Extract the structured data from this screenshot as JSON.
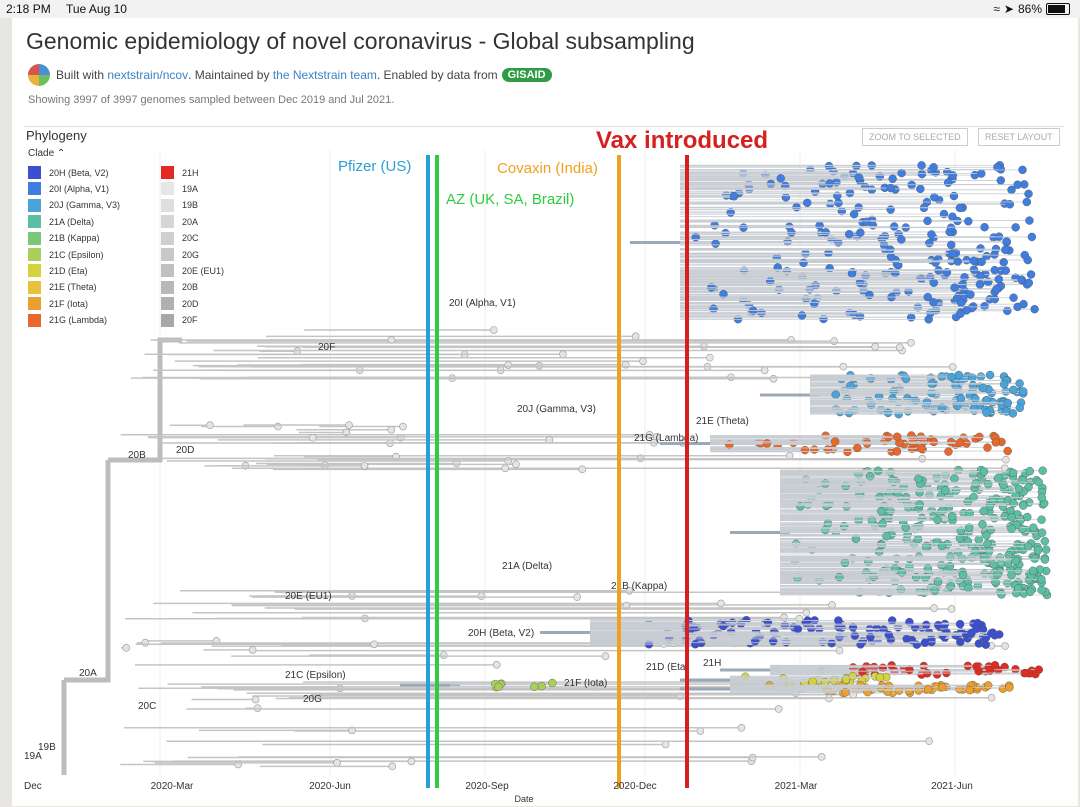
{
  "status_bar": {
    "time": "2:18 PM",
    "date": "Tue Aug 10",
    "battery": "86%",
    "battery_level": 0.86
  },
  "header": {
    "title": "Genomic epidemiology of novel coronavirus - Global subsampling",
    "built_with": "Built with",
    "built_link": "nextstrain/ncov",
    "maintained_by": ". Maintained by",
    "team_link": "the Nextstrain team",
    "enabled_by": ". Enabled by data from",
    "gisaid": "GISAID",
    "showing": "Showing 3997 of 3997 genomes sampled between Dec 2019 and Jul 2021."
  },
  "panel": {
    "title": "Phylogeny",
    "clade_label": "Clade",
    "zoom_button": "ZOOM TO SELECTED",
    "reset_button": "RESET LAYOUT",
    "x_axis_title": "Date",
    "x_ticks": [
      "Dec",
      "2020-Mar",
      "2020-Jun",
      "2020-Sep",
      "2020-Dec",
      "2021-Mar",
      "2021-Jun"
    ]
  },
  "legend": [
    {
      "label": "20H (Beta, V2)",
      "color": "#3d4fd1"
    },
    {
      "label": "20I (Alpha, V1)",
      "color": "#3f7de0"
    },
    {
      "label": "20J (Gamma, V3)",
      "color": "#4aa3d9"
    },
    {
      "label": "21A (Delta)",
      "color": "#5cbfa3"
    },
    {
      "label": "21B (Kappa)",
      "color": "#7bc77a"
    },
    {
      "label": "21C (Epsilon)",
      "color": "#a9cf5a"
    },
    {
      "label": "21D (Eta)",
      "color": "#d6d23c"
    },
    {
      "label": "21E (Theta)",
      "color": "#e8c23a"
    },
    {
      "label": "21F (Iota)",
      "color": "#eaa030"
    },
    {
      "label": "21G (Lambda)",
      "color": "#e8682c"
    },
    {
      "label": "21H",
      "color": "#e02a22"
    },
    {
      "label": "19A",
      "color": "#e6e6e6"
    },
    {
      "label": "19B",
      "color": "#dedede"
    },
    {
      "label": "20A",
      "color": "#d6d6d6"
    },
    {
      "label": "20C",
      "color": "#cfcfcf"
    },
    {
      "label": "20G",
      "color": "#c8c8c8"
    },
    {
      "label": "20E (EU1)",
      "color": "#c0c0c0"
    },
    {
      "label": "20B",
      "color": "#b8b8b8"
    },
    {
      "label": "20D",
      "color": "#b0b0b0"
    },
    {
      "label": "20F",
      "color": "#a8a8a8"
    }
  ],
  "tree_labels": [
    "20I (Alpha, V1)",
    "20F",
    "20J (Gamma, V3)",
    "21E (Theta)",
    "21G (Lambda)",
    "20B",
    "20D",
    "21A (Delta)",
    "21B (Kappa)",
    "20E (EU1)",
    "20H (Beta, V2)",
    "21H",
    "21D (Eta)",
    "20A",
    "21C (Epsilon)",
    "21F (Iota)",
    "20C",
    "20G",
    "19B",
    "19A"
  ],
  "annotations": {
    "pfizer": "Pfizer (US)",
    "az": "AZ (UK, SA, Brazil)",
    "covaxin": "Covaxin (India)",
    "vax": "Vax introduced",
    "colors": {
      "pfizer": "#2a9fd6",
      "az": "#2ecc40",
      "covaxin": "#f0a020",
      "vax": "#d62020"
    }
  }
}
